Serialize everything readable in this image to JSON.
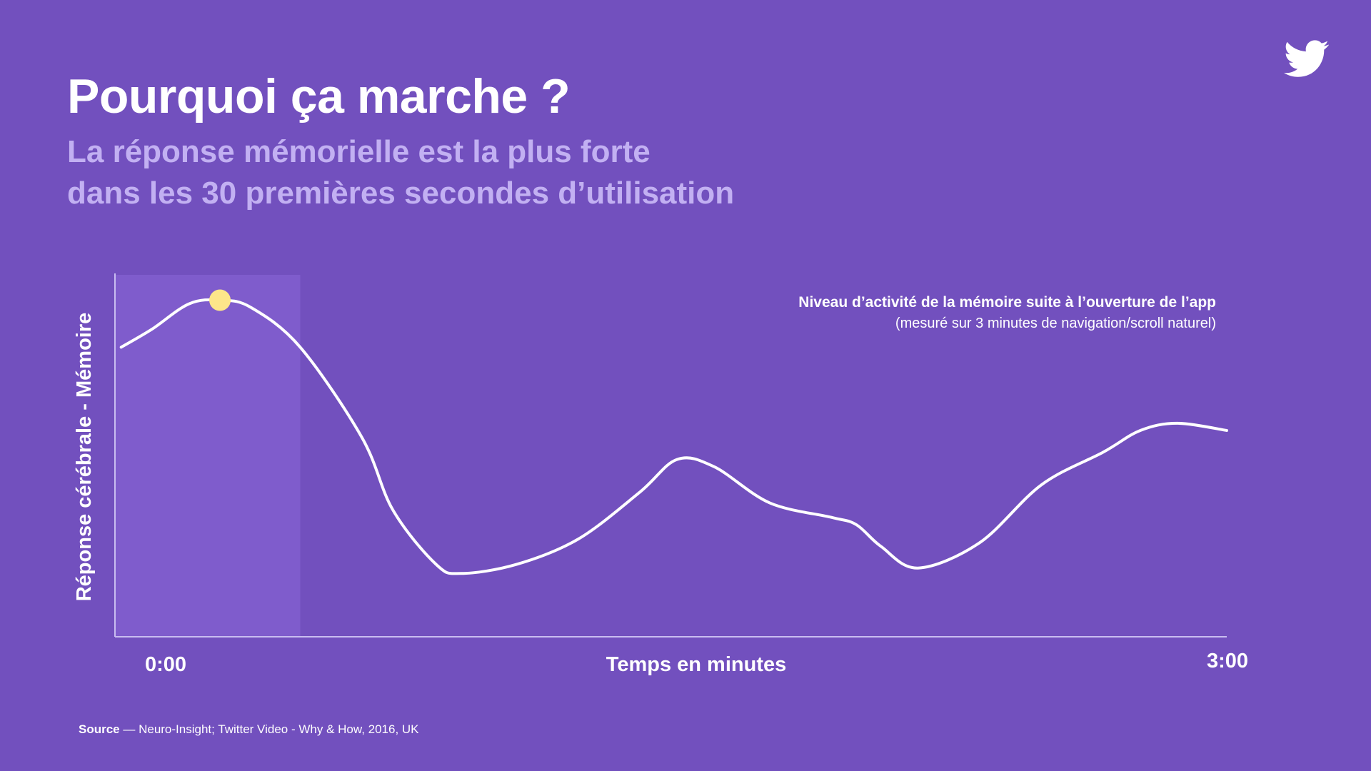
{
  "header": {
    "title": "Pourquoi ça marche ?",
    "subtitle_line1": "La réponse mémorielle est la plus forte",
    "subtitle_line2": "dans les 30 premières secondes d’utilisation"
  },
  "logo": {
    "icon": "twitter-bird-icon"
  },
  "colors": {
    "background": "#7250be",
    "subtitle": "#c2b0f2",
    "highlight_band": "#7f5ccc",
    "peak_marker": "#fde68a",
    "line": "#ffffff",
    "axis": "#c9bdf0"
  },
  "chart_data": {
    "type": "line",
    "title": "",
    "xlabel": "Temps en minutes",
    "ylabel": "Réponse cérébrale - Mémoire",
    "x_tick_labels": [
      "0:00",
      "3:00"
    ],
    "xlim": [
      0,
      180
    ],
    "ylim": [
      0,
      100
    ],
    "y_ticks_shown": false,
    "grid": false,
    "highlight_range_seconds": [
      0,
      30
    ],
    "peak_marker_x": 17,
    "annotation_title": "Niveau d’activité de la mémoire suite à l’ouverture de l’app",
    "annotation_note": "(mesuré sur 3 minutes de navigation/scroll naturel)",
    "series": [
      {
        "x": [
          1,
          6,
          12,
          17,
          22,
          30,
          40,
          45,
          52,
          56,
          65,
          75,
          85,
          91,
          97,
          106,
          116,
          120,
          124,
          130,
          140,
          150,
          160,
          166,
          172,
          180
        ],
        "values": [
          80,
          85,
          92,
          93,
          91,
          80,
          55,
          35,
          20,
          17.5,
          20,
          27,
          40,
          49,
          47,
          37,
          33,
          31,
          25,
          19,
          26,
          42,
          51,
          57,
          59,
          57
        ]
      }
    ]
  },
  "source": {
    "label": "Source",
    "text": " — Neuro-Insight; Twitter Video - Why & How, 2016, UK"
  }
}
